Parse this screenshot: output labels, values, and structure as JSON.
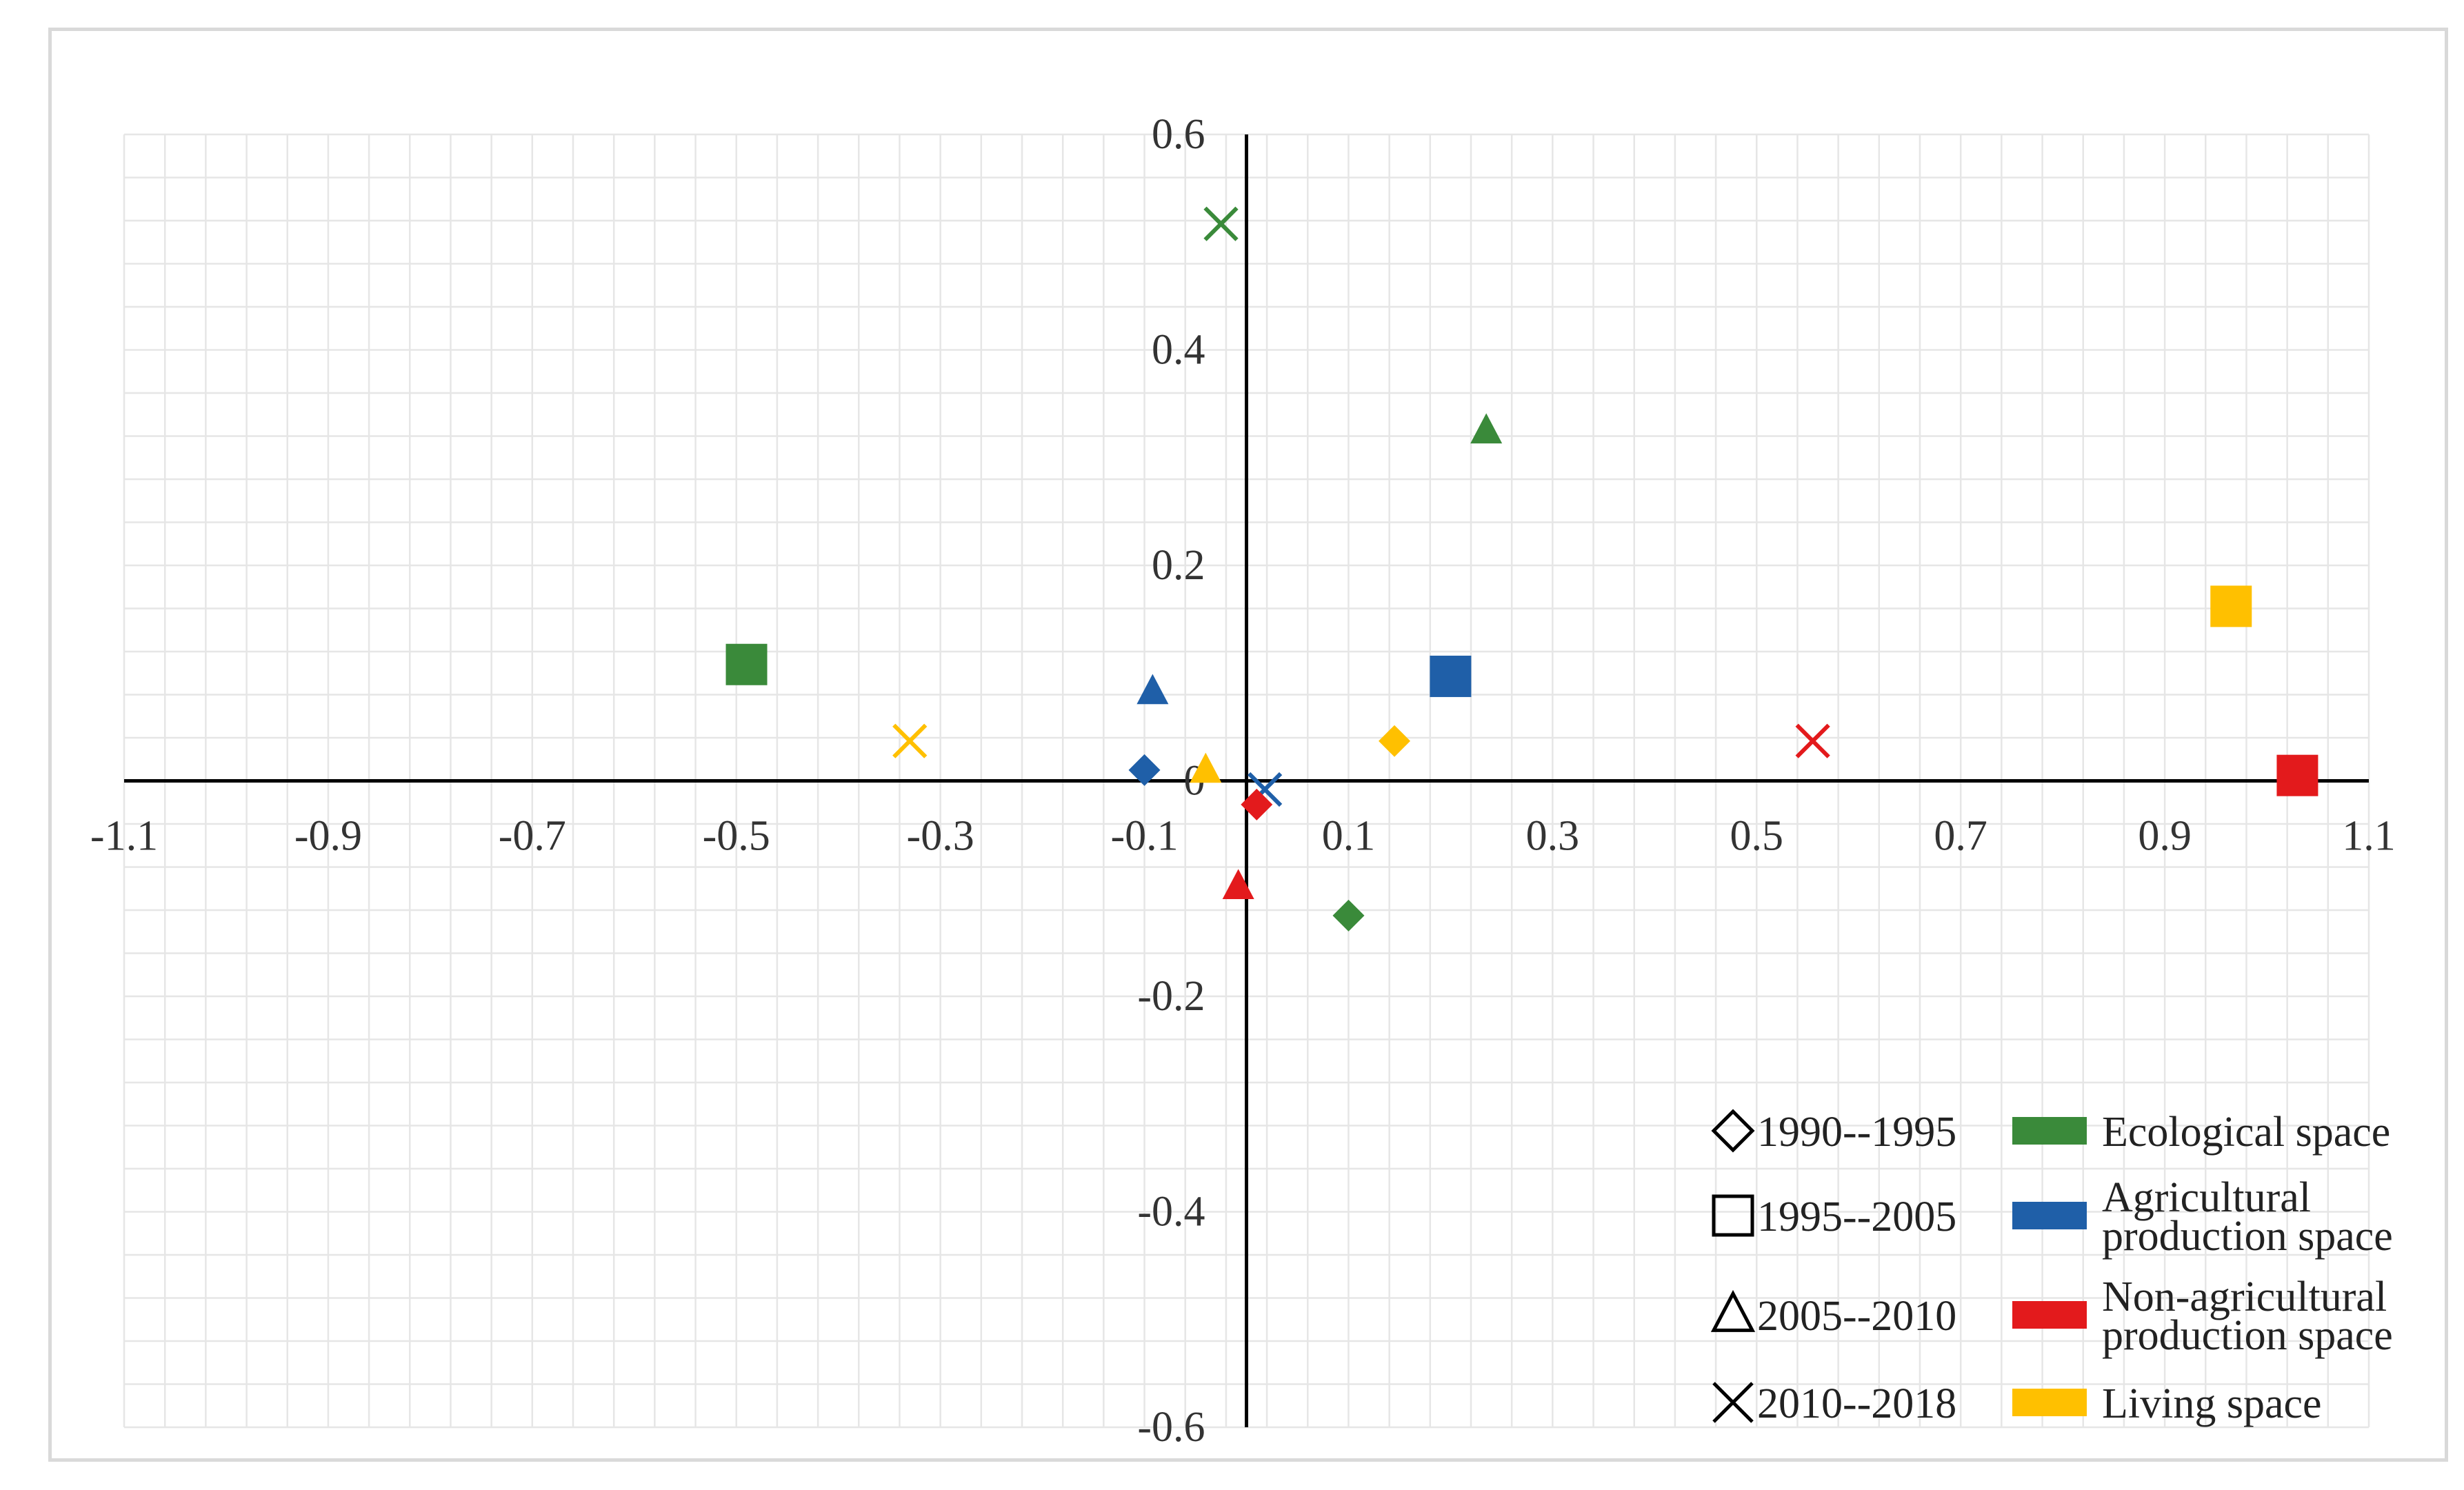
{
  "chart_data": {
    "type": "scatter",
    "title": "",
    "xlabel": "",
    "ylabel": "",
    "xlim": [
      -1.1,
      1.1
    ],
    "ylim": [
      -0.6,
      0.6
    ],
    "x_ticks": [
      -1.1,
      -0.9,
      -0.7,
      -0.5,
      -0.3,
      -0.1,
      0.1,
      0.3,
      0.5,
      0.7,
      0.9,
      1.1
    ],
    "y_ticks": [
      0.6,
      0.4,
      0.2,
      0,
      -0.2,
      -0.4,
      -0.6
    ],
    "x_tick_labels": [
      "-1.1",
      "-0.9",
      "-0.7",
      "-0.5",
      "-0.3",
      "-0.1",
      "0.1",
      "0.3",
      "0.5",
      "0.7",
      "0.9",
      "1.1"
    ],
    "y_tick_labels": [
      "0.6",
      "0.4",
      "0.2",
      "0",
      "-0.2",
      "-0.4",
      "-0.6"
    ],
    "grid": true,
    "legend_position": "bottom-right",
    "period_legend": [
      {
        "symbol": "diamond",
        "label": "1990--1995"
      },
      {
        "symbol": "square",
        "label": "1995--2005"
      },
      {
        "symbol": "triangle",
        "label": "2005--2010"
      },
      {
        "symbol": "cross",
        "label": "2010--2018"
      }
    ],
    "space_legend": [
      {
        "color": "#3a8a3a",
        "lines": [
          "Ecological space"
        ]
      },
      {
        "color": "#1f5fa8",
        "lines": [
          "Agricultural",
          "production space"
        ]
      },
      {
        "color": "#e31a1c",
        "lines": [
          "Non-agricultural",
          "production space"
        ]
      },
      {
        "color": "#ffc000",
        "lines": [
          "Living space"
        ]
      }
    ],
    "series": [
      {
        "space": "Ecological space",
        "color": "#3a8a3a",
        "points": [
          {
            "period": "1990--1995",
            "symbol": "diamond",
            "x": 0.1,
            "y": -0.125
          },
          {
            "period": "1995--2005",
            "symbol": "square",
            "x": -0.49,
            "y": 0.108
          },
          {
            "period": "2005--2010",
            "symbol": "triangle",
            "x": 0.235,
            "y": 0.325
          },
          {
            "period": "2010--2018",
            "symbol": "cross",
            "x": -0.025,
            "y": 0.517
          }
        ]
      },
      {
        "space": "Agricultural production space",
        "color": "#1f5fa8",
        "points": [
          {
            "period": "1990--1995",
            "symbol": "diamond",
            "x": -0.1,
            "y": 0.01
          },
          {
            "period": "1995--2005",
            "symbol": "square",
            "x": 0.2,
            "y": 0.097
          },
          {
            "period": "2005--2010",
            "symbol": "triangle",
            "x": -0.092,
            "y": 0.083
          },
          {
            "period": "2010--2018",
            "symbol": "cross",
            "x": 0.018,
            "y": -0.008
          }
        ]
      },
      {
        "space": "Non-agricultural production space",
        "color": "#e31a1c",
        "points": [
          {
            "period": "1990--1995",
            "symbol": "diamond",
            "x": 0.01,
            "y": -0.022
          },
          {
            "period": "1995--2005",
            "symbol": "square",
            "x": 1.03,
            "y": 0.005
          },
          {
            "period": "2005--2010",
            "symbol": "triangle",
            "x": -0.008,
            "y": -0.098
          },
          {
            "period": "2010--2018",
            "symbol": "cross",
            "x": 0.555,
            "y": 0.037
          }
        ]
      },
      {
        "space": "Living space",
        "color": "#ffc000",
        "points": [
          {
            "period": "1990--1995",
            "symbol": "diamond",
            "x": 0.145,
            "y": 0.037
          },
          {
            "period": "1995--2005",
            "symbol": "square",
            "x": 0.965,
            "y": 0.162
          },
          {
            "period": "2005--2010",
            "symbol": "triangle",
            "x": -0.04,
            "y": 0.01
          },
          {
            "period": "2010--2018",
            "symbol": "cross",
            "x": -0.33,
            "y": 0.037
          }
        ]
      }
    ]
  }
}
